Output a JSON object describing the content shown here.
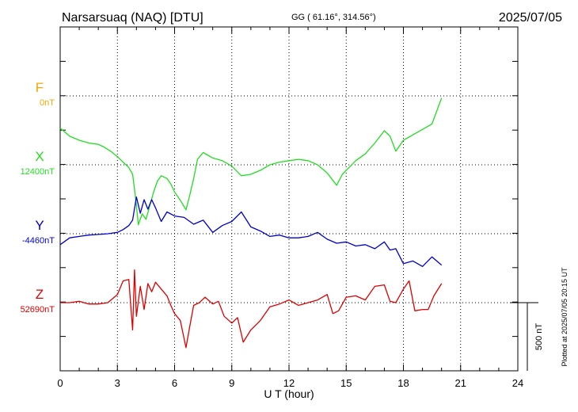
{
  "header": {
    "station": "Narsarsuaq (NAQ)  [DTU]",
    "coords": "GG ( 61.16°, 314.56°)",
    "date": "2025/07/05"
  },
  "plotted_note": "Plotted at 2025/07/05 20:15 UT",
  "scale_label": "500 nT",
  "chart_data": {
    "type": "line",
    "xlabel": "U T (hour)",
    "xlim": [
      0,
      24
    ],
    "x_ticks": [
      "0",
      "3",
      "6",
      "9",
      "12",
      "15",
      "18",
      "21",
      "24"
    ],
    "scale_nT": 500,
    "grid": "dotted horizontal baselines and vertical every 3 h",
    "series": [
      {
        "name": "F",
        "baseline_label": "0nT",
        "color": "#f0a800",
        "x": [],
        "y": []
      },
      {
        "name": "X",
        "baseline_label": "12400nT",
        "color": "#22dd22",
        "x": [
          0,
          0.5,
          1,
          1.5,
          2,
          2.3,
          2.7,
          3,
          3.3,
          3.6,
          3.8,
          3.9,
          4.0,
          4.1,
          4.3,
          4.5,
          4.7,
          4.9,
          5.1,
          5.3,
          5.6,
          5.8,
          6.0,
          6.3,
          6.6,
          6.8,
          7.0,
          7.2,
          7.5,
          8.0,
          8.5,
          9.0,
          9.5,
          10,
          10.5,
          11,
          11.5,
          12,
          12.5,
          13,
          13.5,
          14,
          14.5,
          14.8,
          15,
          15.5,
          16,
          16.5,
          17,
          17.3,
          17.6,
          18,
          18.5,
          19,
          19.5,
          20
        ],
        "y": [
          270,
          210,
          180,
          160,
          150,
          130,
          95,
          60,
          20,
          -20,
          -70,
          -180,
          -300,
          -440,
          -360,
          -400,
          -300,
          -200,
          -120,
          -80,
          -100,
          -140,
          -200,
          -260,
          -330,
          -220,
          -100,
          40,
          90,
          50,
          30,
          -10,
          -80,
          -70,
          -40,
          0,
          20,
          30,
          40,
          30,
          0,
          -60,
          -150,
          -70,
          -40,
          30,
          80,
          160,
          250,
          210,
          100,
          180,
          220,
          260,
          300,
          490
        ]
      },
      {
        "name": "Y",
        "baseline_label": "-4460nT",
        "color": "#0000cc",
        "x": [
          0,
          0.5,
          1,
          1.5,
          2,
          2.5,
          3,
          3.3,
          3.6,
          3.8,
          4.0,
          4.2,
          4.4,
          4.6,
          4.8,
          5.0,
          5.3,
          5.6,
          6.0,
          6.5,
          7.0,
          7.5,
          8.0,
          8.5,
          9.0,
          9.5,
          10,
          10.5,
          11,
          11.5,
          12,
          12.5,
          13,
          13.5,
          14,
          14.5,
          15,
          15.5,
          16,
          16.5,
          17,
          17.3,
          17.6,
          18,
          18.5,
          19,
          19.5,
          20
        ],
        "y": [
          -80,
          -30,
          -20,
          -10,
          -5,
          0,
          10,
          30,
          60,
          100,
          270,
          150,
          250,
          180,
          250,
          190,
          90,
          160,
          130,
          120,
          70,
          100,
          10,
          60,
          90,
          160,
          50,
          20,
          -20,
          -10,
          -30,
          -30,
          -20,
          10,
          -40,
          -70,
          -60,
          -90,
          -80,
          -110,
          -60,
          -120,
          -110,
          -220,
          -200,
          -240,
          -170,
          -230
        ]
      },
      {
        "name": "Z",
        "baseline_label": "52690nT",
        "color": "#dd0000",
        "x": [
          0,
          0.5,
          1,
          1.5,
          2,
          2.5,
          3,
          3.3,
          3.6,
          3.8,
          3.9,
          4.0,
          4.2,
          4.4,
          4.6,
          4.8,
          5.0,
          5.3,
          5.6,
          5.8,
          6.0,
          6.3,
          6.6,
          6.8,
          7.0,
          7.3,
          7.6,
          8.0,
          8.3,
          8.6,
          9.0,
          9.3,
          9.6,
          10,
          10.5,
          11,
          11.5,
          12,
          12.5,
          13,
          13.5,
          14,
          14.3,
          14.6,
          15,
          15.5,
          16,
          16.5,
          17,
          17.3,
          17.6,
          18,
          18.3,
          18.6,
          19,
          19.3,
          19.6,
          20
        ],
        "y": [
          0,
          0,
          10,
          -10,
          -10,
          0,
          60,
          160,
          170,
          -200,
          240,
          -100,
          120,
          -50,
          140,
          80,
          150,
          100,
          50,
          -20,
          -80,
          -130,
          -330,
          -170,
          -20,
          0,
          40,
          -10,
          10,
          -100,
          -150,
          -110,
          -290,
          -200,
          -130,
          -30,
          -10,
          20,
          -20,
          0,
          20,
          60,
          -80,
          -60,
          40,
          50,
          20,
          120,
          130,
          10,
          0,
          100,
          160,
          -60,
          -50,
          -50,
          50,
          140
        ]
      }
    ]
  }
}
